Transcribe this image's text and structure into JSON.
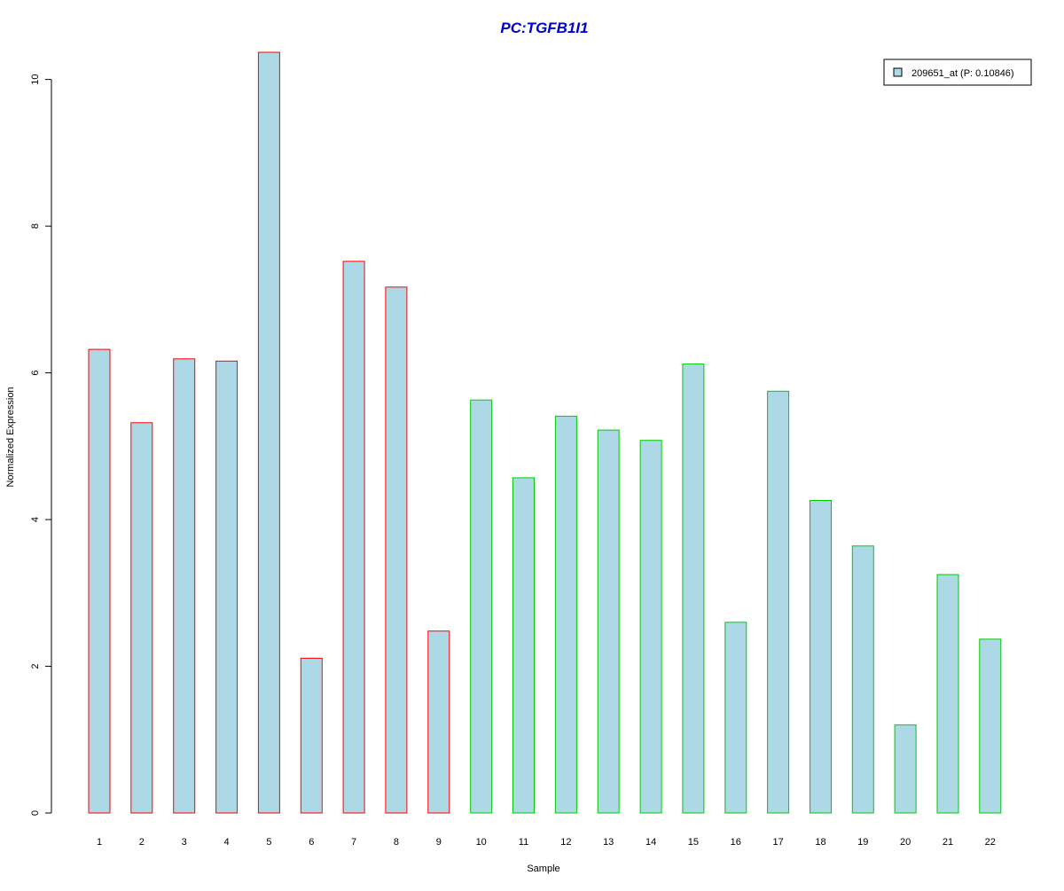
{
  "chart_data": {
    "type": "bar",
    "title": "PC:TGFB1I1",
    "xlabel": "Sample",
    "ylabel": "Normalized Expression",
    "categories": [
      "1",
      "2",
      "3",
      "4",
      "5",
      "6",
      "7",
      "8",
      "9",
      "10",
      "11",
      "12",
      "13",
      "14",
      "15",
      "16",
      "17",
      "18",
      "19",
      "20",
      "21",
      "22"
    ],
    "series": [
      {
        "name": "209651_at (P: 0.10846)",
        "values": [
          6.32,
          5.32,
          6.19,
          6.16,
          10.37,
          2.11,
          7.52,
          7.17,
          2.48,
          5.63,
          4.57,
          5.41,
          5.22,
          5.08,
          6.12,
          2.6,
          5.75,
          4.26,
          3.64,
          1.2,
          3.25,
          2.37
        ]
      }
    ],
    "group_border_colors": [
      "#ff0000",
      "#ff0000",
      "#ff0000",
      "#ff0000",
      "#ff0000",
      "#ff0000",
      "#ff0000",
      "#ff0000",
      "#ff0000",
      "#00cc00",
      "#00cc00",
      "#00cc00",
      "#00cc00",
      "#00cc00",
      "#00cc00",
      "#00cc00",
      "#00cc00",
      "#00cc00",
      "#00cc00",
      "#00cc00",
      "#00cc00",
      "#00cc00"
    ],
    "bar_fill": "#add8e6",
    "title_color": "#0000cc",
    "y_ticks": [
      0,
      2,
      4,
      6,
      8,
      10
    ],
    "ylim": [
      0,
      10.37
    ],
    "grid": false,
    "legend_position": "top-right"
  }
}
